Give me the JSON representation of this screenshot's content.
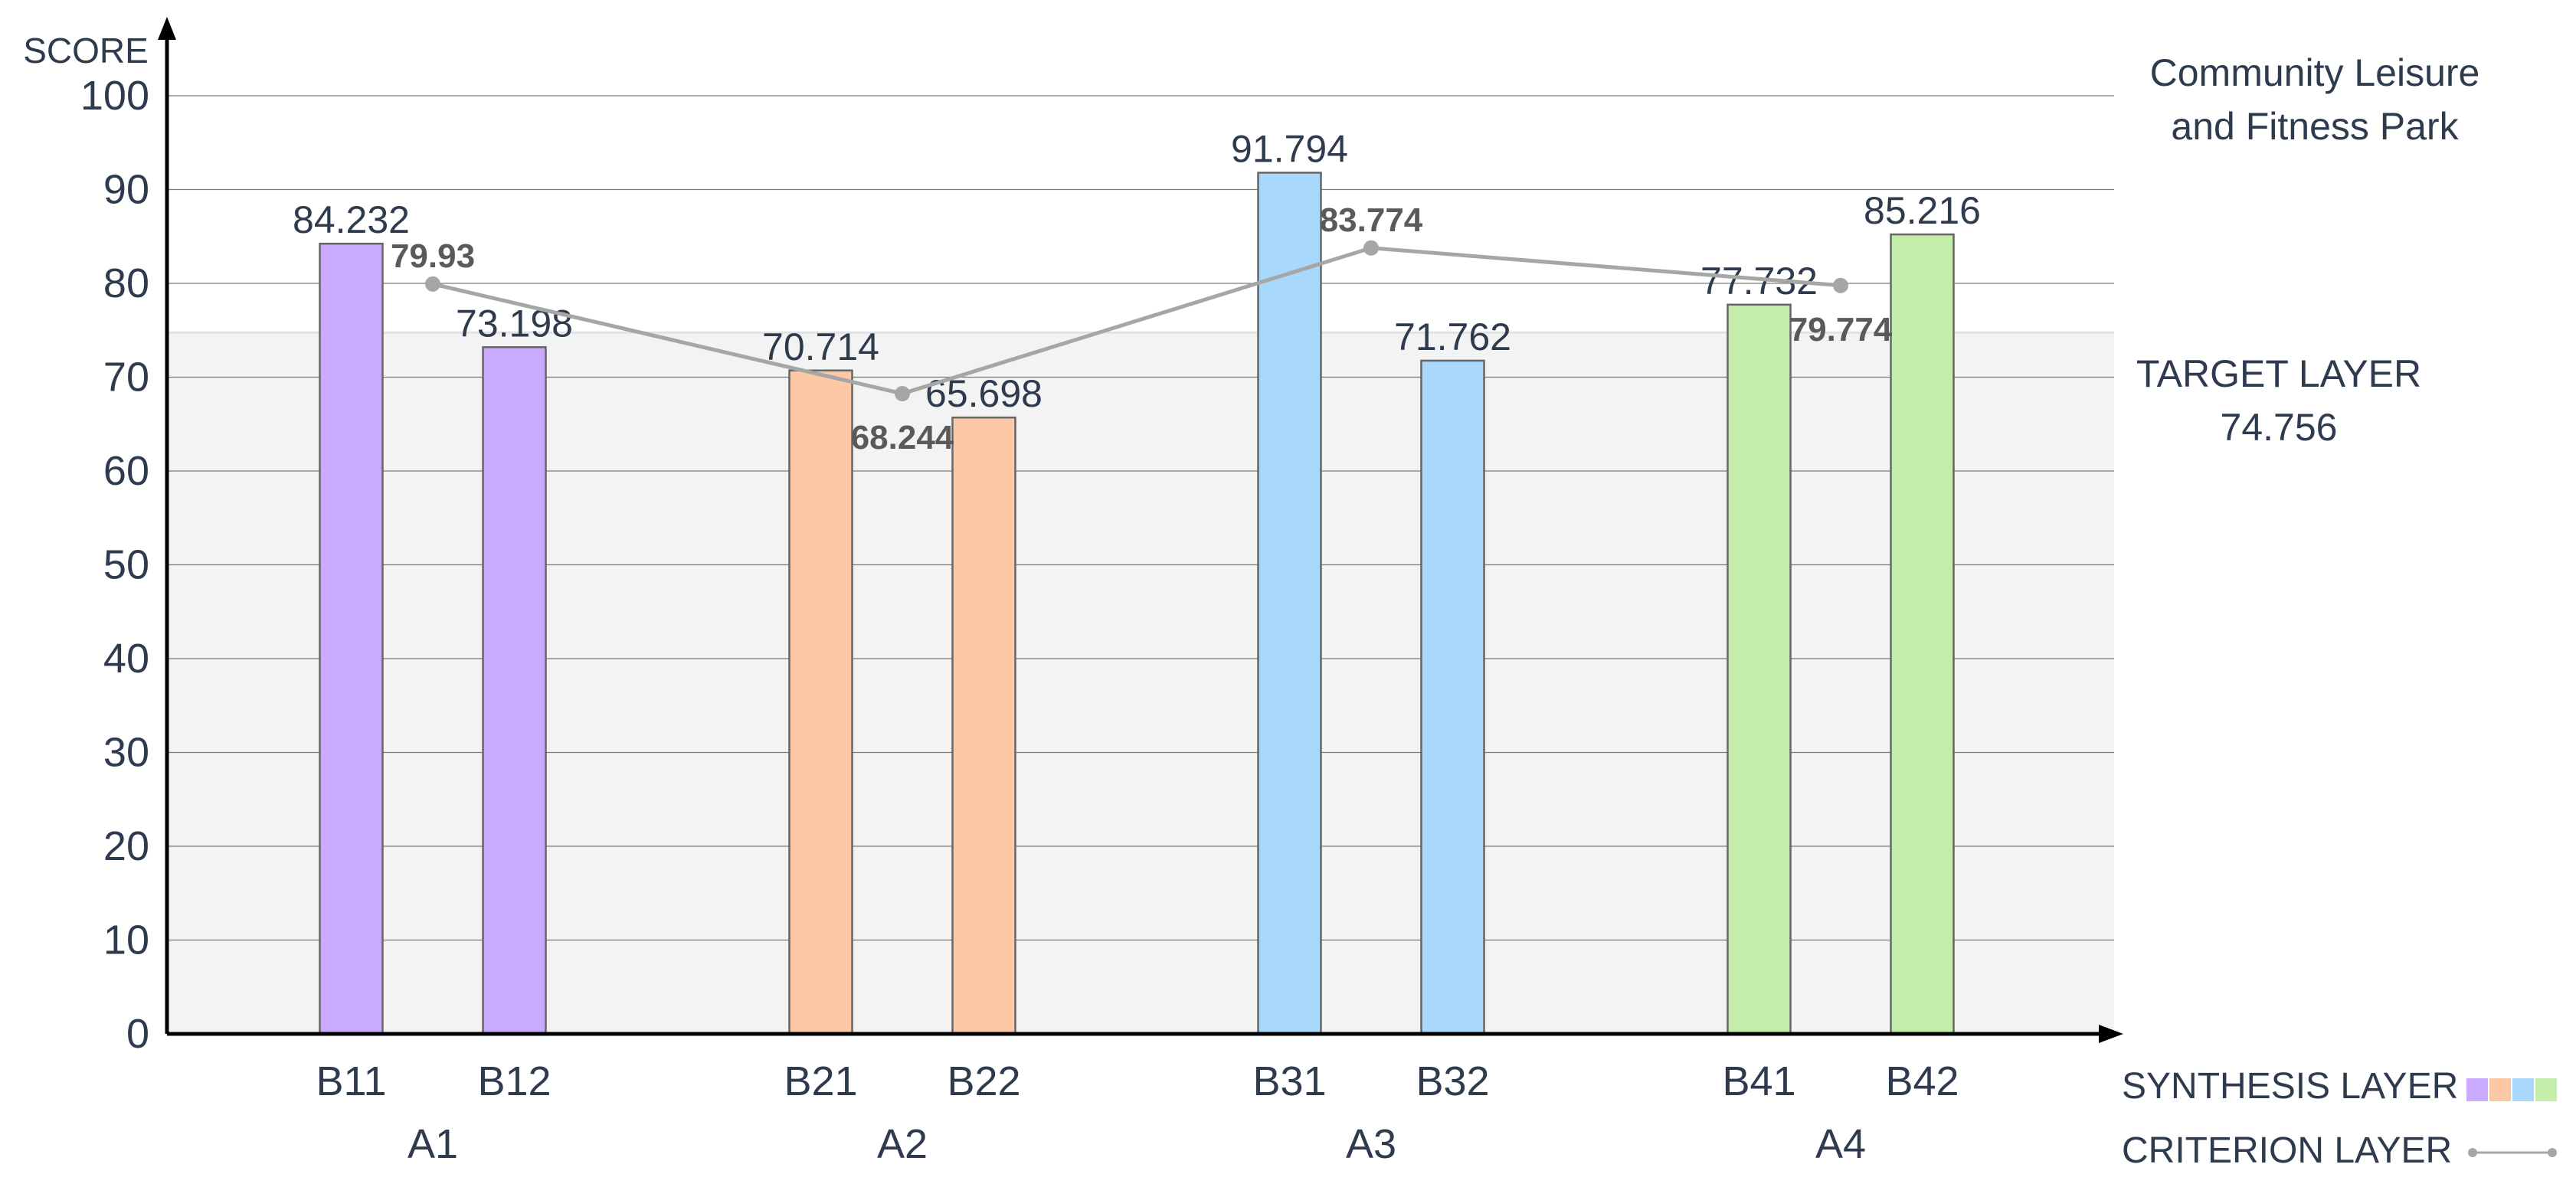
{
  "chart_data": {
    "type": "bar",
    "title": "Community Leisure and Fitness Park",
    "title_lines": [
      "Community Leisure",
      "and Fitness Park"
    ],
    "ylabel": "SCORE",
    "ylim": [
      0,
      100
    ],
    "y_ticks": [
      0,
      10,
      20,
      30,
      40,
      50,
      60,
      70,
      80,
      90,
      100
    ],
    "grid": true,
    "categories": [
      "B11",
      "B12",
      "B21",
      "B22",
      "B31",
      "B32",
      "B41",
      "B42"
    ],
    "groups": [
      {
        "label": "A1",
        "members": [
          "B11",
          "B12"
        ],
        "color": "#c9aaff"
      },
      {
        "label": "A2",
        "members": [
          "B21",
          "B22"
        ],
        "color": "#fcc8a6"
      },
      {
        "label": "A3",
        "members": [
          "B31",
          "B32"
        ],
        "color": "#a9d8fd"
      },
      {
        "label": "A4",
        "members": [
          "B41",
          "B42"
        ],
        "color": "#c3eda8"
      }
    ],
    "values": [
      84.232,
      73.198,
      70.714,
      65.698,
      91.794,
      71.762,
      77.732,
      85.216
    ],
    "value_labels": [
      "84.232",
      "73.198",
      "70.714",
      "65.698",
      "91.794",
      "71.762",
      "77.732",
      "85.216"
    ],
    "criterion_series": {
      "name": "CRITERION LAYER",
      "x": [
        "A1",
        "A2",
        "A3",
        "A4"
      ],
      "values": [
        79.93,
        68.244,
        83.774,
        79.774
      ],
      "labels": [
        "79.93",
        "68.244",
        "83.774",
        "79.774"
      ],
      "color": "#a6a6a6"
    },
    "target": {
      "label": "TARGET LAYER",
      "value": 74.756,
      "value_label": "74.756",
      "band_color": "#f3f3f3"
    },
    "legend": {
      "placement": "bottom-right",
      "synthesis_label": "SYNTHESIS LAYER",
      "criterion_label": "CRITERION LAYER"
    }
  }
}
